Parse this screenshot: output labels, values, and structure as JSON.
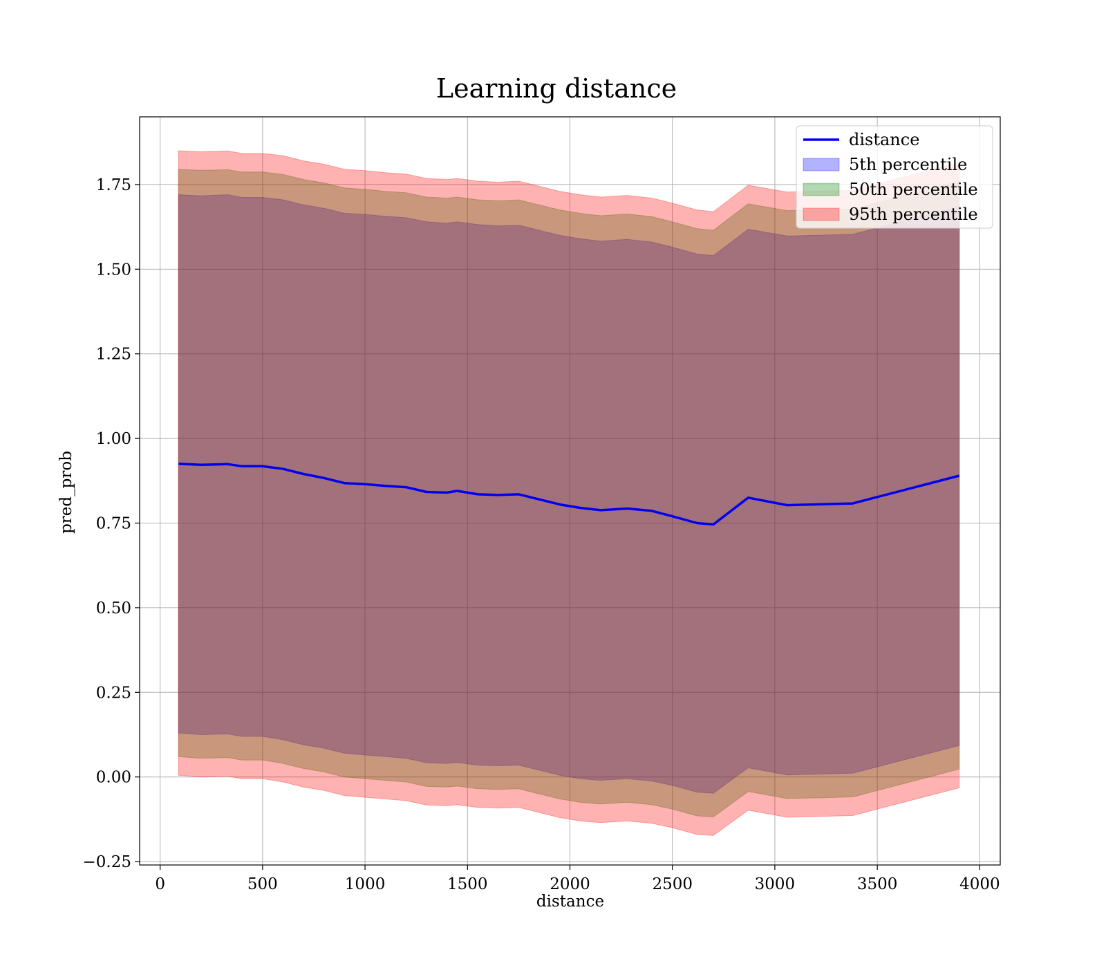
{
  "chart_data": {
    "type": "line",
    "title": "Learning distance",
    "xlabel": "distance",
    "ylabel": "pred_prob",
    "xlim": [
      -100,
      4100
    ],
    "ylim": [
      -0.26,
      1.95
    ],
    "xticks": [
      0,
      500,
      1000,
      1500,
      2000,
      2500,
      3000,
      3500,
      4000
    ],
    "xtick_labels": [
      "0",
      "500",
      "1000",
      "1500",
      "2000",
      "2500",
      "3000",
      "3500",
      "4000"
    ],
    "yticks": [
      -0.25,
      0,
      0.25,
      0.5,
      0.75,
      1.0,
      1.25,
      1.5,
      1.75
    ],
    "ytick_labels": [
      "−0.25",
      "0.00",
      "0.25",
      "0.50",
      "0.75",
      "1.00",
      "1.25",
      "1.50",
      "1.75"
    ],
    "grid": true,
    "legend_position": "top-right",
    "x": [
      90,
      200,
      330,
      400,
      500,
      600,
      700,
      800,
      900,
      1000,
      1100,
      1200,
      1300,
      1400,
      1450,
      1550,
      1650,
      1750,
      1850,
      1950,
      2050,
      2150,
      2280,
      2400,
      2500,
      2620,
      2700,
      2870,
      3060,
      3380,
      3900
    ],
    "series": [
      {
        "name": "distance",
        "kind": "line",
        "color": "#0000ee",
        "values": [
          0.925,
          0.922,
          0.924,
          0.918,
          0.918,
          0.91,
          0.895,
          0.883,
          0.868,
          0.865,
          0.86,
          0.856,
          0.842,
          0.84,
          0.845,
          0.835,
          0.833,
          0.835,
          0.82,
          0.805,
          0.795,
          0.788,
          0.793,
          0.786,
          0.77,
          0.75,
          0.746,
          0.825,
          0.803,
          0.808,
          0.89
        ]
      },
      {
        "name": "5th percentile",
        "kind": "band",
        "color": "#0000ff",
        "lower": [
          0.13,
          0.125,
          0.127,
          0.12,
          0.12,
          0.11,
          0.095,
          0.085,
          0.07,
          0.065,
          0.06,
          0.055,
          0.042,
          0.04,
          0.043,
          0.035,
          0.033,
          0.035,
          0.02,
          0.005,
          -0.005,
          -0.01,
          -0.005,
          -0.012,
          -0.025,
          -0.045,
          -0.048,
          0.027,
          0.006,
          0.011,
          0.093
        ],
        "upper": [
          1.72,
          1.717,
          1.72,
          1.712,
          1.712,
          1.705,
          1.69,
          1.68,
          1.665,
          1.662,
          1.656,
          1.652,
          1.64,
          1.636,
          1.64,
          1.632,
          1.628,
          1.63,
          1.615,
          1.6,
          1.59,
          1.583,
          1.588,
          1.58,
          1.565,
          1.545,
          1.54,
          1.618,
          1.598,
          1.603,
          1.685
        ]
      },
      {
        "name": "50th percentile",
        "kind": "band",
        "color": "#008000",
        "lower": [
          0.06,
          0.055,
          0.057,
          0.05,
          0.05,
          0.04,
          0.025,
          0.015,
          0.0,
          -0.005,
          -0.01,
          -0.015,
          -0.028,
          -0.03,
          -0.027,
          -0.035,
          -0.037,
          -0.035,
          -0.05,
          -0.065,
          -0.075,
          -0.08,
          -0.075,
          -0.082,
          -0.095,
          -0.115,
          -0.118,
          -0.043,
          -0.064,
          -0.059,
          0.023
        ],
        "upper": [
          1.795,
          1.792,
          1.794,
          1.787,
          1.787,
          1.78,
          1.765,
          1.755,
          1.74,
          1.736,
          1.73,
          1.726,
          1.713,
          1.71,
          1.713,
          1.705,
          1.702,
          1.705,
          1.69,
          1.675,
          1.665,
          1.658,
          1.663,
          1.655,
          1.64,
          1.62,
          1.615,
          1.693,
          1.673,
          1.678,
          1.76
        ]
      },
      {
        "name": "95th percentile",
        "kind": "band",
        "color": "#ff0000",
        "lower": [
          0.005,
          0.0,
          0.002,
          -0.005,
          -0.005,
          -0.015,
          -0.03,
          -0.04,
          -0.055,
          -0.06,
          -0.065,
          -0.07,
          -0.083,
          -0.085,
          -0.082,
          -0.09,
          -0.092,
          -0.09,
          -0.105,
          -0.12,
          -0.13,
          -0.135,
          -0.13,
          -0.137,
          -0.15,
          -0.17,
          -0.173,
          -0.098,
          -0.119,
          -0.114,
          -0.032
        ],
        "upper": [
          1.85,
          1.847,
          1.849,
          1.842,
          1.842,
          1.835,
          1.82,
          1.81,
          1.795,
          1.791,
          1.785,
          1.781,
          1.768,
          1.765,
          1.768,
          1.76,
          1.757,
          1.76,
          1.745,
          1.73,
          1.72,
          1.713,
          1.718,
          1.71,
          1.695,
          1.675,
          1.67,
          1.748,
          1.728,
          1.733,
          1.815
        ]
      }
    ]
  }
}
